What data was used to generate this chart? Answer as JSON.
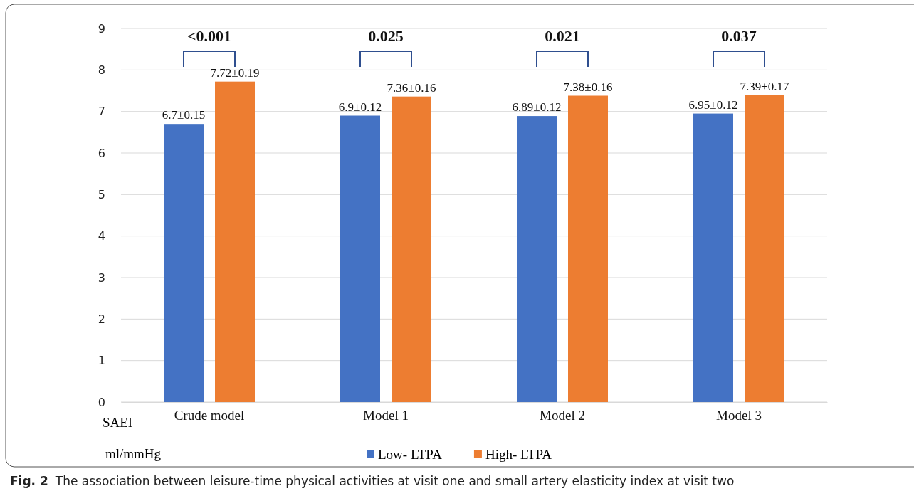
{
  "chart_data": {
    "type": "bar",
    "title": "The association between leisure-time physical activities at visit one and small artery elasticity index at visit two",
    "subtitle": "Fig. 2",
    "ylabel": "SAEI ml/mmHg",
    "categories": [
      "Crude model",
      "Model 1",
      "Model 2",
      "Model 3"
    ],
    "series": [
      {
        "name": "Low- LTPA",
        "color": "#4472c4",
        "values": [
          6.7,
          6.9,
          6.89,
          6.95
        ],
        "value_labels": [
          "6.7±0.15",
          "6.9±0.12",
          "6.89±0.12",
          "6.95±0.12"
        ]
      },
      {
        "name": "High- LTPA",
        "color": "#ed7d31",
        "values": [
          7.72,
          7.36,
          7.38,
          7.39
        ],
        "value_labels": [
          "7.72±0.19",
          "7.36±0.16",
          "7.38±0.16",
          "7.39±0.17"
        ]
      }
    ],
    "annotations": [
      "<0.001",
      "0.025",
      "0.021",
      "0.037"
    ],
    "ylim": [
      0,
      9
    ],
    "yticks": [
      0,
      1,
      2,
      3,
      4,
      5,
      6,
      7,
      8,
      9
    ],
    "grid": "y",
    "legend": "bottom"
  }
}
